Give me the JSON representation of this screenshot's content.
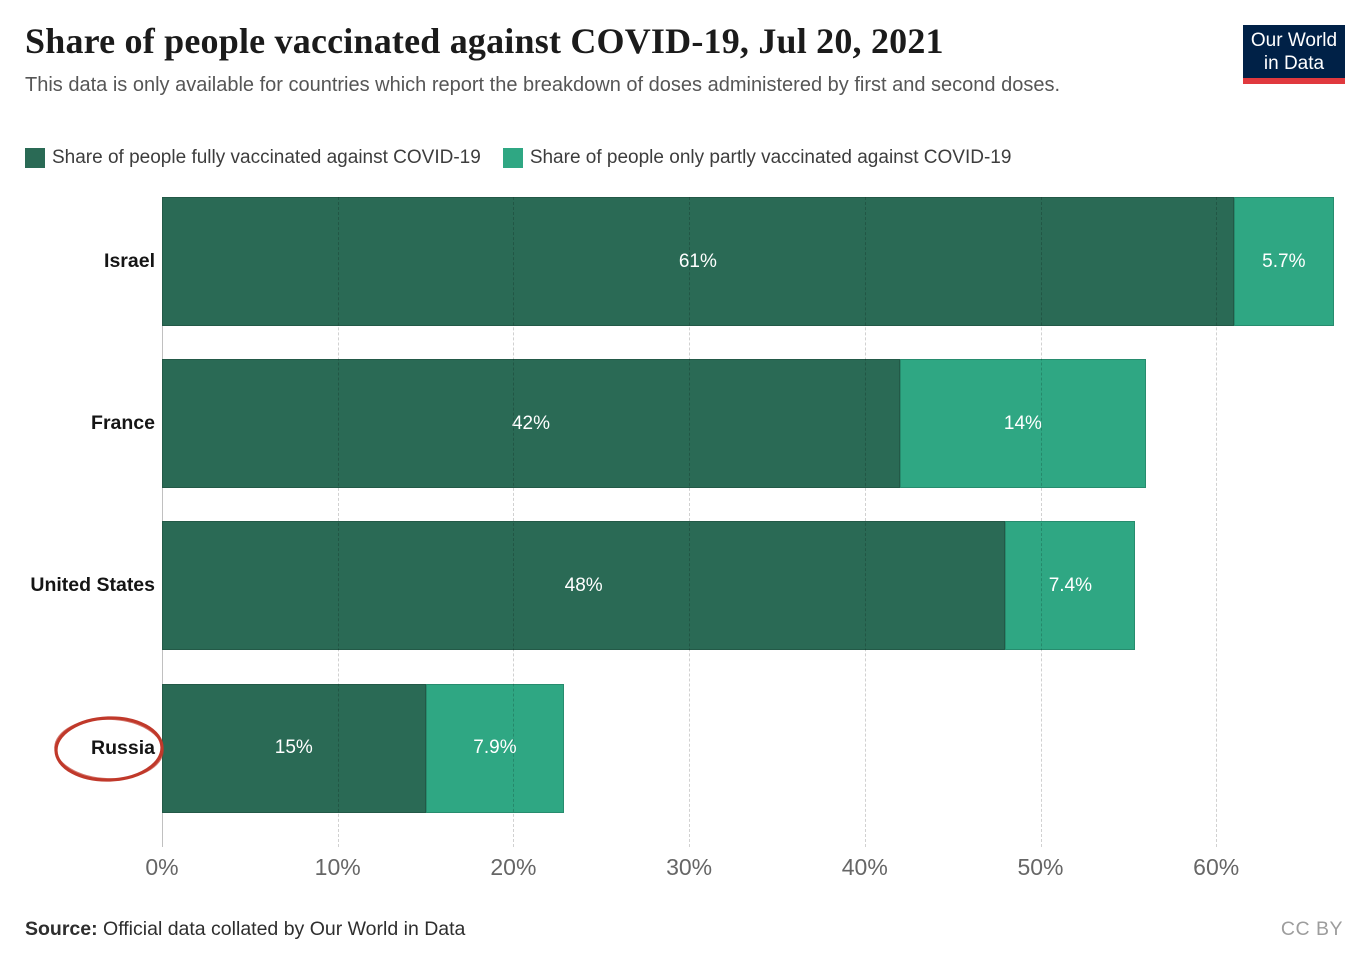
{
  "header": {
    "title": "Share of people vaccinated against COVID-19, Jul 20, 2021",
    "subtitle": "This data is only available for countries which report the breakdown of doses administered by first and second doses."
  },
  "logo": {
    "line1": "Our World",
    "line2": "in Data",
    "background": "#002147",
    "accent": "#e0393e"
  },
  "legend": {
    "items": [
      {
        "label": "Share of people fully vaccinated against COVID-19",
        "color": "#2a6a55"
      },
      {
        "label": "Share of people only partly vaccinated against COVID-19",
        "color": "#2fa783"
      }
    ]
  },
  "chart_data": {
    "type": "bar",
    "orientation": "horizontal",
    "stacked": true,
    "title": "Share of people vaccinated against COVID-19, Jul 20, 2021",
    "categories": [
      "Israel",
      "France",
      "United States",
      "Russia"
    ],
    "series": [
      {
        "name": "Share of people fully vaccinated against COVID-19",
        "color": "#2a6a55",
        "values": [
          61,
          42,
          48,
          15
        ],
        "labels": [
          "61%",
          "42%",
          "48%",
          "15%"
        ]
      },
      {
        "name": "Share of people only partly vaccinated against COVID-19",
        "color": "#2fa783",
        "values": [
          5.7,
          14,
          7.4,
          7.9
        ],
        "labels": [
          "5.7%",
          "14%",
          "7.4%",
          "7.9%"
        ]
      }
    ],
    "x_axis": {
      "ticks": [
        0,
        10,
        20,
        30,
        40,
        50,
        60
      ],
      "tick_labels": [
        "0%",
        "10%",
        "20%",
        "30%",
        "40%",
        "50%",
        "60%"
      ],
      "range": [
        0,
        67
      ],
      "unit": "%"
    },
    "grid": "dashed-vertical",
    "legend_position": "top"
  },
  "annotation": {
    "shape": "ellipse",
    "target": "Russia",
    "color": "#c0392b"
  },
  "footer": {
    "source_prefix": "Source:",
    "source_text": " Official data collated by Our World in Data",
    "license": "CC BY"
  }
}
